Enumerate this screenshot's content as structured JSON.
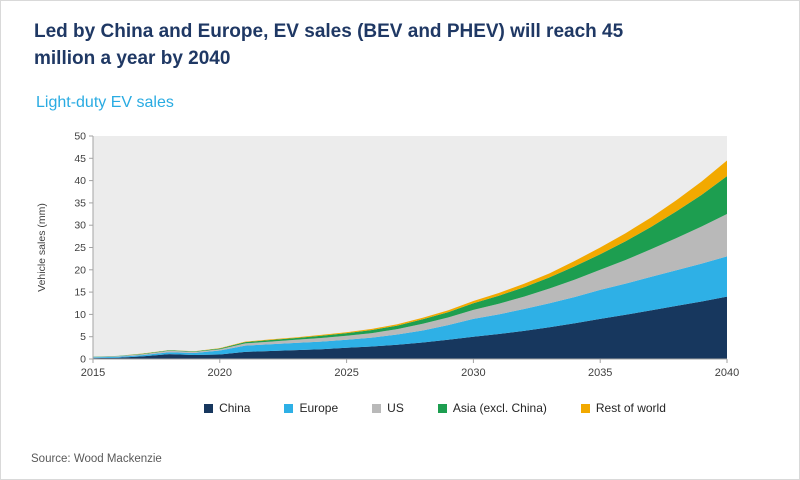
{
  "header": {
    "title": "Led by China and Europe, EV sales (BEV and PHEV) will reach 45 million a year by 2040",
    "subtitle": "Light-duty EV sales"
  },
  "footer": {
    "source": "Source: Wood Mackenzie"
  },
  "colors": {
    "title_navy": "#1f3864",
    "subtitle_blue": "#29abe2",
    "axis_gray": "#a3a3a3",
    "tick_text": "#404040",
    "source_gray": "#595959"
  },
  "chart_data": {
    "type": "area",
    "stacked": true,
    "title": "Light-duty EV sales",
    "xlabel": "",
    "ylabel": "Vehicle sales (mm)",
    "ylim": [
      0,
      50
    ],
    "ytick_interval": 5,
    "grid": false,
    "legend_position": "bottom",
    "plot_bg": "#ececec",
    "x": [
      2015,
      2016,
      2017,
      2018,
      2019,
      2020,
      2021,
      2022,
      2023,
      2024,
      2025,
      2026,
      2027,
      2028,
      2029,
      2030,
      2031,
      2032,
      2033,
      2034,
      2035,
      2036,
      2037,
      2038,
      2039,
      2040
    ],
    "xticks": [
      2015,
      2020,
      2025,
      2030,
      2035,
      2040
    ],
    "series": [
      {
        "name": "China",
        "color": "#17375e",
        "values": [
          0.2,
          0.3,
          0.6,
          1.1,
          0.9,
          1.0,
          1.6,
          1.8,
          2.0,
          2.2,
          2.5,
          2.8,
          3.2,
          3.7,
          4.3,
          5.0,
          5.6,
          6.3,
          7.1,
          8.0,
          9.0,
          9.9,
          10.9,
          11.9,
          12.9,
          14.0
        ]
      },
      {
        "name": "Europe",
        "color": "#2eb0e6",
        "values": [
          0.15,
          0.2,
          0.3,
          0.4,
          0.45,
          0.9,
          1.4,
          1.5,
          1.6,
          1.7,
          1.8,
          2.0,
          2.3,
          2.7,
          3.3,
          4.0,
          4.4,
          4.9,
          5.4,
          5.9,
          6.5,
          7.0,
          7.5,
          8.0,
          8.5,
          9.0
        ]
      },
      {
        "name": "US",
        "color": "#b9b9b9",
        "values": [
          0.1,
          0.15,
          0.2,
          0.35,
          0.25,
          0.3,
          0.5,
          0.6,
          0.7,
          0.8,
          0.9,
          1.0,
          1.2,
          1.5,
          1.7,
          2.0,
          2.4,
          2.8,
          3.3,
          3.9,
          4.5,
          5.3,
          6.2,
          7.2,
          8.3,
          9.5
        ]
      },
      {
        "name": "Asia (excl. China)",
        "color": "#1d9e50",
        "values": [
          0.05,
          0.05,
          0.1,
          0.1,
          0.1,
          0.15,
          0.3,
          0.35,
          0.4,
          0.5,
          0.6,
          0.7,
          0.8,
          1.0,
          1.2,
          1.5,
          1.8,
          2.1,
          2.5,
          3.0,
          3.5,
          4.2,
          5.0,
          6.0,
          7.1,
          8.5
        ]
      },
      {
        "name": "Rest of world",
        "color": "#f2a900",
        "values": [
          0.0,
          0.0,
          0.05,
          0.05,
          0.05,
          0.1,
          0.1,
          0.15,
          0.15,
          0.2,
          0.2,
          0.25,
          0.3,
          0.35,
          0.4,
          0.5,
          0.6,
          0.75,
          0.9,
          1.2,
          1.5,
          1.8,
          2.1,
          2.5,
          3.0,
          3.5
        ]
      }
    ]
  }
}
